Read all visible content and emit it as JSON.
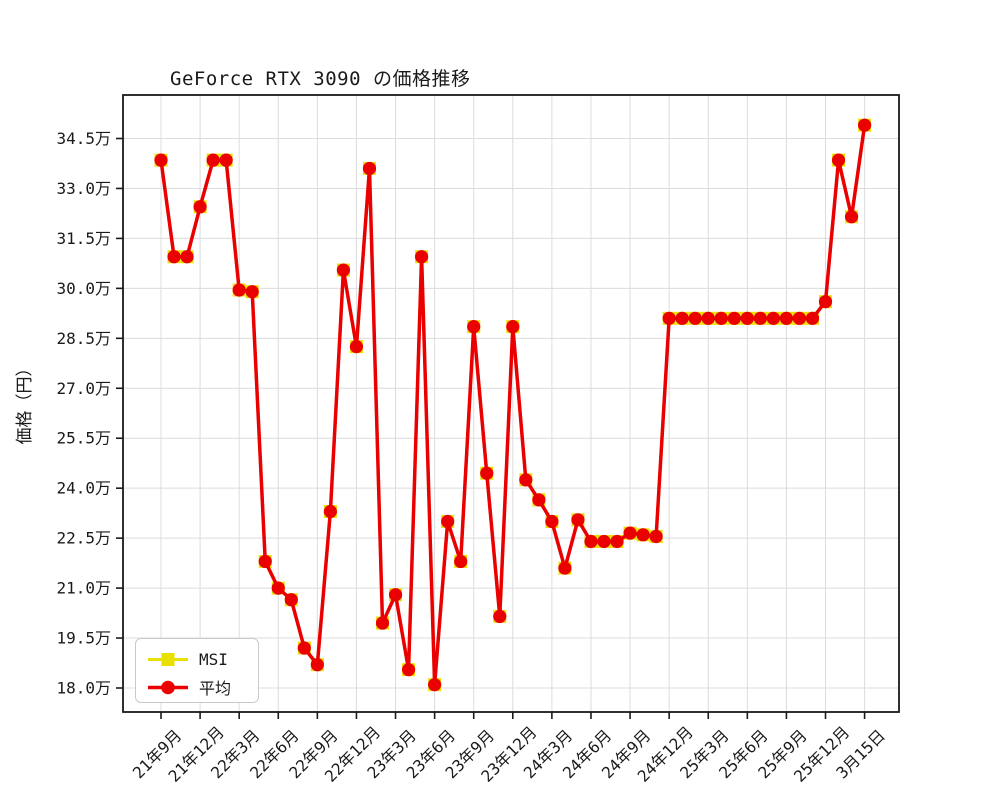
{
  "chart_data": {
    "type": "line",
    "title": "GeForce RTX 3090 の価格推移",
    "ylabel": "価格（円）",
    "value_unit": "万円",
    "grid": true,
    "legend_position": "lower left",
    "ylim": [
      17.3,
      35.8
    ],
    "y_ticks": [
      {
        "value": 34.5,
        "label": "34.5万"
      },
      {
        "value": 33.0,
        "label": "33.0万"
      },
      {
        "value": 31.5,
        "label": "31.5万"
      },
      {
        "value": 30.0,
        "label": "30.0万"
      },
      {
        "value": 28.5,
        "label": "28.5万"
      },
      {
        "value": 27.0,
        "label": "27.0万"
      },
      {
        "value": 25.5,
        "label": "25.5万"
      },
      {
        "value": 24.0,
        "label": "24.0万"
      },
      {
        "value": 22.5,
        "label": "22.5万"
      },
      {
        "value": 21.0,
        "label": "21.0万"
      },
      {
        "value": 19.5,
        "label": "19.5万"
      },
      {
        "value": 18.0,
        "label": "18.0万"
      }
    ],
    "x_tick_labels": [
      "21年9月",
      "21年12月",
      "22年3月",
      "22年6月",
      "22年9月",
      "22年12月",
      "23年3月",
      "23年6月",
      "23年9月",
      "23年12月",
      "24年3月",
      "24年6月",
      "24年9月",
      "24年12月",
      "25年3月",
      "25年6月",
      "25年9月",
      "25年12月",
      "3月15日"
    ],
    "x_tick_every": 3,
    "n_points": 55,
    "series": [
      {
        "name": "MSI",
        "color": "#e8e000",
        "marker": "square",
        "values": [
          33.85,
          30.95,
          30.95,
          32.45,
          33.85,
          33.85,
          29.95,
          29.9,
          21.8,
          21.0,
          20.65,
          19.2,
          18.7,
          23.3,
          30.55,
          28.25,
          33.6,
          19.95,
          20.8,
          18.55,
          30.95,
          18.1,
          23.0,
          21.8,
          28.85,
          24.45,
          20.15,
          28.85,
          24.25,
          23.65,
          23.0,
          21.6,
          23.05,
          22.4,
          22.4,
          22.4,
          22.65,
          22.6,
          22.55,
          29.1,
          29.1,
          29.1,
          29.1,
          29.1,
          29.1,
          29.1,
          29.1,
          29.1,
          29.1,
          29.1,
          29.1,
          29.6,
          33.85,
          32.15,
          34.9
        ]
      },
      {
        "name": "平均",
        "color": "#ea0000",
        "marker": "circle",
        "values": [
          33.85,
          30.95,
          30.95,
          32.45,
          33.85,
          33.85,
          29.95,
          29.9,
          21.8,
          21.0,
          20.65,
          19.2,
          18.7,
          23.3,
          30.55,
          28.25,
          33.6,
          19.95,
          20.8,
          18.55,
          30.95,
          18.1,
          23.0,
          21.8,
          28.85,
          24.45,
          20.15,
          28.85,
          24.25,
          23.65,
          23.0,
          21.6,
          23.05,
          22.4,
          22.4,
          22.4,
          22.65,
          22.6,
          22.55,
          29.1,
          29.1,
          29.1,
          29.1,
          29.1,
          29.1,
          29.1,
          29.1,
          29.1,
          29.1,
          29.1,
          29.1,
          29.6,
          33.85,
          32.15,
          34.9
        ]
      }
    ],
    "colors": {
      "grid": "#dcdcdc",
      "axis": "#1a1a1a",
      "background": "#ffffff"
    }
  }
}
